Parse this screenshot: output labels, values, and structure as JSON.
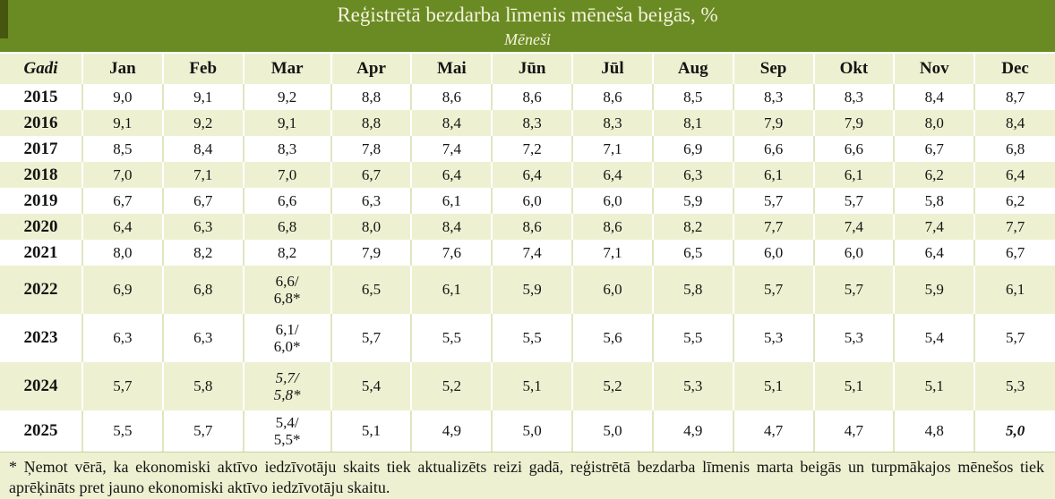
{
  "header": {
    "title": "Reģistrētā bezdarba līmenis mēneša beigās, %",
    "subtitle": "Mēneši"
  },
  "chart_data": {
    "type": "table",
    "title": "Reģistrētā bezdarba līmenis mēneša beigās, %",
    "subtitle": "Mēneši",
    "unit": "%",
    "columns": [
      "Gadi",
      "Jan",
      "Feb",
      "Mar",
      "Apr",
      "Mai",
      "Jūn",
      "Jūl",
      "Aug",
      "Sep",
      "Okt",
      "Nov",
      "Dec"
    ],
    "rows": [
      {
        "year": "2015",
        "values": [
          "9,0",
          "9,1",
          "9,2",
          "8,8",
          "8,6",
          "8,6",
          "8,6",
          "8,5",
          "8,3",
          "8,3",
          "8,4",
          "8,7"
        ]
      },
      {
        "year": "2016",
        "values": [
          "9,1",
          "9,2",
          "9,1",
          "8,8",
          "8,4",
          "8,3",
          "8,3",
          "8,1",
          "7,9",
          "7,9",
          "8,0",
          "8,4"
        ]
      },
      {
        "year": "2017",
        "values": [
          "8,5",
          "8,4",
          "8,3",
          "7,8",
          "7,4",
          "7,2",
          "7,1",
          "6,9",
          "6,6",
          "6,6",
          "6,7",
          "6,8"
        ]
      },
      {
        "year": "2018",
        "values": [
          "7,0",
          "7,1",
          "7,0",
          "6,7",
          "6,4",
          "6,4",
          "6,4",
          "6,3",
          "6,1",
          "6,1",
          "6,2",
          "6,4"
        ]
      },
      {
        "year": "2019",
        "values": [
          "6,7",
          "6,7",
          "6,6",
          "6,3",
          "6,1",
          "6,0",
          "6,0",
          "5,9",
          "5,7",
          "5,7",
          "5,8",
          "6,2"
        ]
      },
      {
        "year": "2020",
        "values": [
          "6,4",
          "6,3",
          "6,8",
          "8,0",
          "8,4",
          "8,6",
          "8,6",
          "8,2",
          "7,7",
          "7,4",
          "7,4",
          "7,7"
        ]
      },
      {
        "year": "2021",
        "values": [
          "8,0",
          "8,2",
          "8,2",
          "7,9",
          "7,6",
          "7,4",
          "7,1",
          "6,5",
          "6,0",
          "6,0",
          "6,4",
          "6,7"
        ]
      },
      {
        "year": "2022",
        "values": [
          "6,9",
          "6,8",
          "6,6/\n6,8*",
          "6,5",
          "6,1",
          "5,9",
          "6,0",
          "5,8",
          "5,7",
          "5,7",
          "5,9",
          "6,1"
        ]
      },
      {
        "year": "2023",
        "values": [
          "6,3",
          "6,3",
          "6,1/\n6,0*",
          "5,7",
          "5,5",
          "5,5",
          "5,6",
          "5,5",
          "5,3",
          "5,3",
          "5,4",
          "5,7"
        ]
      },
      {
        "year": "2024",
        "values": [
          "5,7",
          "5,8",
          "5,7/\n5,8*",
          "5,4",
          "5,2",
          "5,1",
          "5,2",
          "5,3",
          "5,1",
          "5,1",
          "5,1",
          "5,3"
        ]
      },
      {
        "year": "2025",
        "values": [
          "5,5",
          "5,7",
          "5,4/\n5,5*",
          "5,1",
          "4,9",
          "5,0",
          "5,0",
          "4,9",
          "4,7",
          "4,7",
          "4,8",
          "5,0"
        ]
      }
    ],
    "cell_styles": {
      "2024:Mar": "italic",
      "2025:Dec": "bold-italic"
    },
    "footnote": "* Ņemot vērā, ka ekonomiski aktīvo iedzīvotāju skaits tiek aktualizēts reizi gadā, reģistrētā bezdarba līmenis marta beigās un turpmākajos mēnešos tiek aprēķināts pret jauno ekonomiski aktīvo iedzīvotāju skaitu."
  },
  "colors": {
    "header_bg": "#6a8b23",
    "stripe_bg": "#edf1d1",
    "plain_bg": "#ffffff",
    "title_text": "#f6f3de",
    "body_text": "#141414"
  }
}
